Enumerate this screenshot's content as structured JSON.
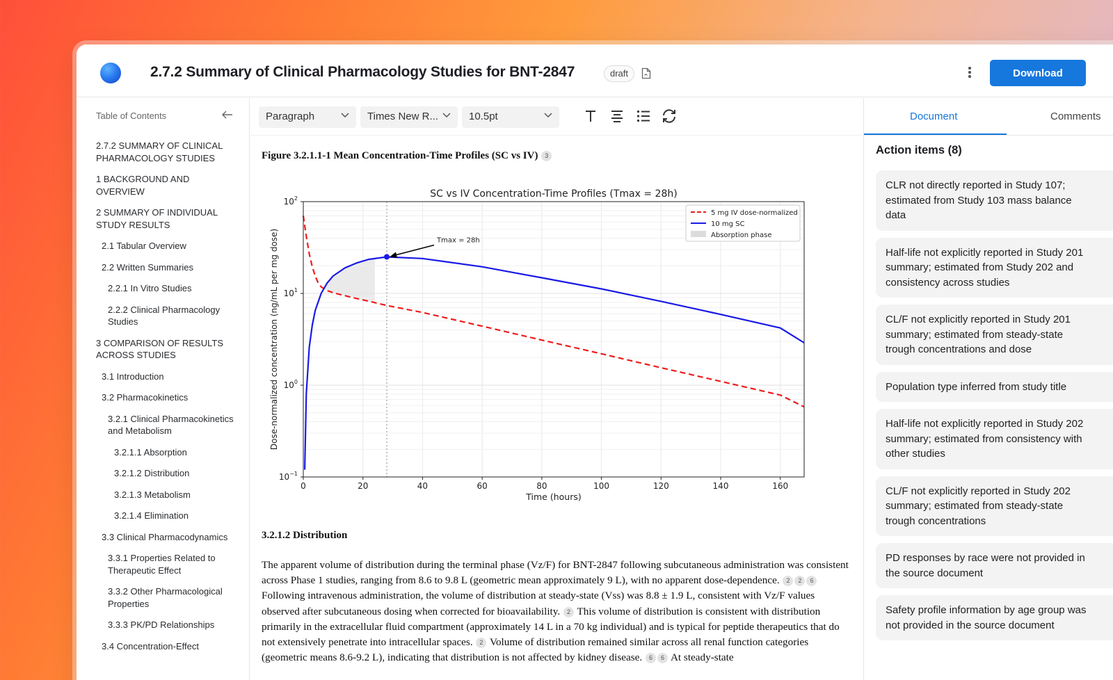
{
  "header": {
    "title": "2.7.2 Summary of Clinical Pharmacology Studies for BNT-2847",
    "badge": "draft",
    "download_label": "Download"
  },
  "toolbar": {
    "block_style": "Paragraph",
    "font": "Times New R...",
    "font_size": "10.5pt"
  },
  "toc": {
    "heading": "Table of Contents",
    "items": [
      {
        "label": "2.7.2 SUMMARY OF CLINICAL PHARMACOLOGY STUDIES",
        "level": 0
      },
      {
        "label": "1 BACKGROUND AND OVERVIEW",
        "level": 0
      },
      {
        "label": "2 SUMMARY OF INDIVIDUAL STUDY RESULTS",
        "level": 0
      },
      {
        "label": "2.1 Tabular Overview",
        "level": 1
      },
      {
        "label": "2.2 Written Summaries",
        "level": 1
      },
      {
        "label": "2.2.1 In Vitro Studies",
        "level": 2
      },
      {
        "label": "2.2.2 Clinical Pharmacology Studies",
        "level": 2
      },
      {
        "label": "3 COMPARISON OF RESULTS ACROSS STUDIES",
        "level": 0
      },
      {
        "label": "3.1 Introduction",
        "level": 1
      },
      {
        "label": "3.2 Pharmacokinetics",
        "level": 1
      },
      {
        "label": "3.2.1 Clinical Pharmacokinetics and Metabolism",
        "level": 2
      },
      {
        "label": "3.2.1.1 Absorption",
        "level": 3
      },
      {
        "label": "3.2.1.2 Distribution",
        "level": 3
      },
      {
        "label": "3.2.1.3 Metabolism",
        "level": 3
      },
      {
        "label": "3.2.1.4 Elimination",
        "level": 3
      },
      {
        "label": "3.3 Clinical Pharmacodynamics",
        "level": 1
      },
      {
        "label": "3.3.1 Properties Related to Therapeutic Effect",
        "level": 2
      },
      {
        "label": "3.3.2 Other Pharmacological Properties",
        "level": 2
      },
      {
        "label": "3.3.3 PK/PD Relationships",
        "level": 2
      },
      {
        "label": "3.4 Concentration-Effect",
        "level": 1
      }
    ]
  },
  "document": {
    "figure_caption": "Figure 3.2.1.1-1 Mean Concentration-Time Profiles (SC vs IV)",
    "figure_cite": "3",
    "section_title": "3.2.1.2 Distribution",
    "paragraph": [
      {
        "t": "text",
        "v": "The apparent volume of distribution during the terminal phase (Vz/F) for BNT-2847 following subcutaneous administration was consistent across Phase 1 studies, ranging from 8.6 to 9.8 L (geometric mean approximately 9 L), with no apparent dose-dependence. "
      },
      {
        "t": "cite",
        "v": "2"
      },
      {
        "t": "cite",
        "v": "2"
      },
      {
        "t": "cite",
        "v": "6"
      },
      {
        "t": "text",
        "v": " Following intravenous administration, the volume of distribution at steady-state (Vss) was 8.8 ± 1.9 L, consistent with Vz/F values observed after subcutaneous dosing when corrected for bioavailability. "
      },
      {
        "t": "cite",
        "v": "2"
      },
      {
        "t": "text",
        "v": " This volume of distribution is consistent with distribution primarily in the extracellular fluid compartment (approximately 14 L in a 70 kg individual) and is typical for peptide therapeutics that do not extensively penetrate into intracellular spaces. "
      },
      {
        "t": "cite",
        "v": "2"
      },
      {
        "t": "text",
        "v": " Volume of distribution remained similar across all renal function categories (geometric means 8.6-9.2 L), indicating that distribution is not affected by kidney disease. "
      },
      {
        "t": "cite",
        "v": "6"
      },
      {
        "t": "cite",
        "v": "6"
      },
      {
        "t": "text",
        "v": " At steady-state"
      }
    ]
  },
  "right_panel": {
    "tabs": [
      "Document",
      "Comments"
    ],
    "action_items_heading": "Action items (8)",
    "action_items": [
      [
        "CLR not directly reported in Study 107;",
        "estimated from Study 103 mass balance",
        "data"
      ],
      [
        "Half-life not explicitly reported in Study 201",
        "summary; estimated from Study 202 and",
        "consistency across studies"
      ],
      [
        "CL/F not explicitly reported in Study 201",
        "summary; estimated from steady-state",
        "trough concentrations and dose"
      ],
      [
        "Population type inferred from study title"
      ],
      [
        "Half-life not explicitly reported in Study 202",
        "summary; estimated from consistency with",
        "other studies"
      ],
      [
        "CL/F not explicitly reported in Study 202",
        "summary; estimated from steady-state",
        "trough concentrations"
      ],
      [
        "PD responses by race were not provided in",
        "the source document"
      ],
      [
        "Safety profile information by age group was",
        "not provided in the source document"
      ]
    ]
  },
  "chart_data": {
    "type": "line",
    "title": "SC vs IV Concentration-Time Profiles (Tmax = 28h)",
    "xlabel": "Time (hours)",
    "ylabel": "Dose-normalized concentration (ng/mL per mg dose)",
    "xlim": [
      0,
      168
    ],
    "ylim": [
      0.1,
      100
    ],
    "yscale": "log",
    "x_ticks": [
      0,
      20,
      40,
      60,
      80,
      100,
      120,
      140,
      160
    ],
    "y_ticks": [
      0.1,
      1,
      10,
      100
    ],
    "y_tick_labels": [
      {
        "base": "10",
        "exp": "−1"
      },
      {
        "base": "10",
        "exp": "0"
      },
      {
        "base": "10",
        "exp": "1"
      },
      {
        "base": "10",
        "exp": "2"
      }
    ],
    "grid": true,
    "legend_position": "top-right",
    "series": [
      {
        "name": "5 mg IV dose-normalized",
        "color": "#ee1c1c",
        "style": "dashed",
        "x": [
          0,
          1,
          2,
          3,
          4,
          5,
          6,
          8,
          10,
          12,
          16,
          20,
          28,
          40,
          60,
          80,
          100,
          120,
          140,
          160,
          168
        ],
        "y": [
          70,
          42,
          27,
          19.5,
          15.5,
          13,
          11.8,
          10.7,
          10.2,
          9.8,
          9.1,
          8.5,
          7.4,
          6.2,
          4.4,
          3.1,
          2.2,
          1.55,
          1.1,
          0.78,
          0.58
        ]
      },
      {
        "name": "10 mg SC",
        "color": "#1a1ae6",
        "style": "solid",
        "x": [
          0.5,
          1,
          2,
          3,
          4,
          6,
          8,
          10,
          14,
          18,
          22,
          28,
          40,
          60,
          80,
          100,
          120,
          140,
          160,
          168
        ],
        "y": [
          0.12,
          0.8,
          2.6,
          4.5,
          6.5,
          10,
          13,
          15.5,
          19,
          21.5,
          23.5,
          25,
          24,
          19.5,
          14.8,
          11.2,
          8.2,
          5.9,
          4.2,
          2.9
        ]
      }
    ],
    "absorption_phase": {
      "label": "Absorption phase",
      "x_end": 24
    },
    "tmax_line": {
      "x": 28
    },
    "annotation": {
      "text": "Tmax = 28h",
      "x": 28,
      "y": 25
    }
  }
}
